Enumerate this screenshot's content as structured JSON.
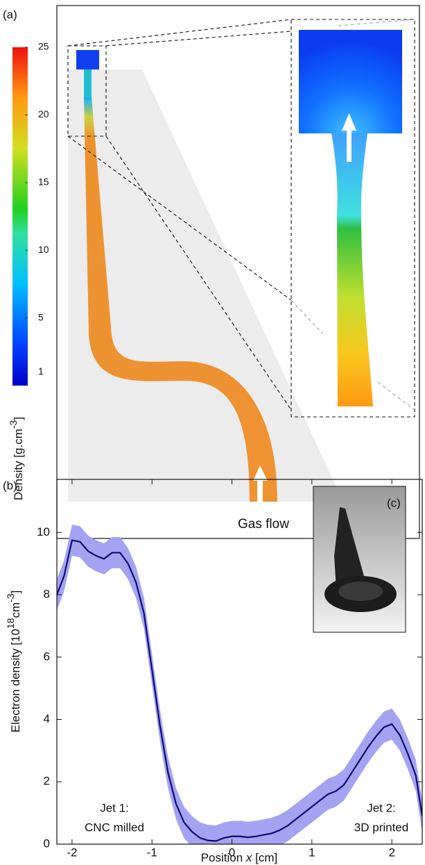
{
  "chart_data": [
    {
      "type": "colormap",
      "panel": "(a)",
      "clim": [
        0,
        25
      ],
      "ticks": [
        1,
        5,
        10,
        15,
        20,
        25
      ],
      "label": [
        "Density [g.cm",
        "-3",
        "]"
      ],
      "annotation": "Gas flow"
    },
    {
      "type": "line",
      "panel": "(b)",
      "xlabel": [
        "Position ",
        "x",
        " [cm]"
      ],
      "ylabel": [
        "Electron density [10",
        "18",
        "cm",
        "-3",
        "]"
      ],
      "x": [
        -2.19,
        -2.1,
        -2.0,
        -1.9,
        -1.8,
        -1.7,
        -1.6,
        -1.5,
        -1.4,
        -1.3,
        -1.2,
        -1.1,
        -1.0,
        -0.9,
        -0.8,
        -0.7,
        -0.6,
        -0.5,
        -0.4,
        -0.3,
        -0.2,
        -0.1,
        0.0,
        0.1,
        0.2,
        0.3,
        0.4,
        0.5,
        0.6,
        0.7,
        0.8,
        0.9,
        1.0,
        1.1,
        1.2,
        1.3,
        1.4,
        1.5,
        1.6,
        1.7,
        1.8,
        1.9,
        2.0,
        2.1,
        2.2,
        2.3,
        2.38
      ],
      "series": [
        {
          "color": "#0b0b6e",
          "band_color": "#a3a3f2",
          "error": 0.5,
          "values": [
            8.0,
            8.6,
            9.75,
            9.7,
            9.4,
            9.25,
            9.15,
            9.35,
            9.35,
            9.0,
            8.4,
            7.4,
            5.6,
            3.8,
            2.3,
            1.3,
            0.7,
            0.4,
            0.2,
            0.12,
            0.1,
            0.2,
            0.25,
            0.25,
            0.22,
            0.25,
            0.3,
            0.35,
            0.45,
            0.6,
            0.8,
            1.0,
            1.2,
            1.4,
            1.6,
            1.7,
            1.9,
            2.3,
            2.7,
            3.1,
            3.45,
            3.75,
            3.85,
            3.5,
            2.9,
            2.2,
            0.9
          ]
        }
      ],
      "xlim": [
        -2.19,
        2.38
      ],
      "ylim": [
        0,
        11.7
      ],
      "xticks": [
        -2,
        -1,
        0,
        1,
        2
      ],
      "yticks": [
        0,
        2,
        4,
        6,
        8,
        10
      ],
      "annotations": [
        [
          "Jet 1:",
          "CNC milled"
        ],
        [
          "Jet 2:",
          "3D printed"
        ]
      ],
      "inset_label": "(c)"
    }
  ]
}
